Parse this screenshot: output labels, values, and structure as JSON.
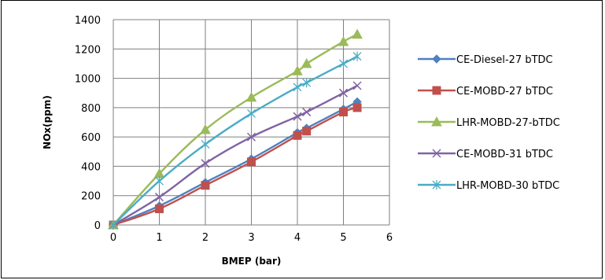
{
  "chart_data": {
    "type": "line",
    "title": "",
    "xlabel": "BMEP (bar)",
    "ylabel": "NOx(ppm)",
    "xlim": [
      0,
      6
    ],
    "ylim": [
      0,
      1400
    ],
    "xticks": [
      0,
      1,
      2,
      3,
      4,
      5,
      6
    ],
    "yticks": [
      0,
      200,
      400,
      600,
      800,
      1000,
      1200,
      1400
    ],
    "grid": true,
    "legend_position": "right",
    "series": [
      {
        "name": "CE-Diesel-27 bTDC",
        "color": "#4F81BD",
        "marker": "diamond",
        "x": [
          0,
          1,
          2,
          3,
          4,
          4.2,
          5,
          5.3
        ],
        "y": [
          0,
          130,
          290,
          450,
          630,
          660,
          790,
          840
        ]
      },
      {
        "name": "CE-MOBD-27 bTDC",
        "color": "#C0504D",
        "marker": "square",
        "x": [
          0,
          1,
          2,
          3,
          4,
          4.2,
          5,
          5.3
        ],
        "y": [
          0,
          110,
          270,
          430,
          610,
          640,
          770,
          800
        ]
      },
      {
        "name": "LHR-MOBD-27-bTDC",
        "color": "#9BBB59",
        "marker": "triangle",
        "x": [
          0,
          1,
          2,
          3,
          4,
          4.2,
          5,
          5.3
        ],
        "y": [
          0,
          350,
          650,
          870,
          1050,
          1100,
          1250,
          1300
        ]
      },
      {
        "name": "CE-MOBD-31 bTDC",
        "color": "#8064A2",
        "marker": "x",
        "x": [
          0,
          1,
          2,
          3,
          4,
          4.2,
          5,
          5.3
        ],
        "y": [
          0,
          190,
          420,
          600,
          740,
          770,
          900,
          950
        ]
      },
      {
        "name": "LHR-MOBD-30 bTDC",
        "color": "#4BACC6",
        "marker": "star",
        "x": [
          0,
          1,
          2,
          3,
          4,
          4.2,
          5,
          5.3
        ],
        "y": [
          0,
          300,
          550,
          760,
          940,
          970,
          1100,
          1150
        ]
      }
    ]
  }
}
